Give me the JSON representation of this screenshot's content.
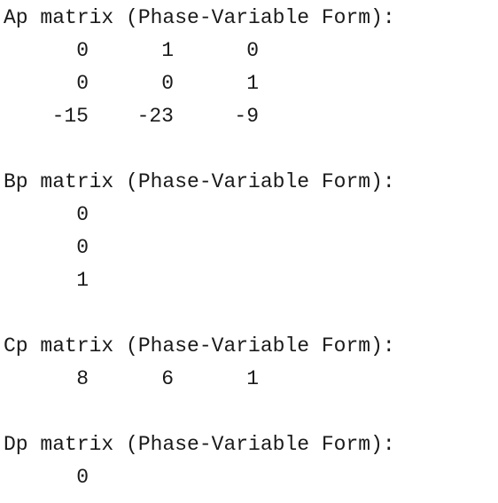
{
  "matrices": {
    "ap": {
      "label": "Ap matrix (Phase-Variable Form):",
      "rows": [
        [
          "0",
          "1",
          "0"
        ],
        [
          "0",
          "0",
          "1"
        ],
        [
          "-15",
          "-23",
          "-9"
        ]
      ]
    },
    "bp": {
      "label": "Bp matrix (Phase-Variable Form):",
      "rows": [
        [
          "0"
        ],
        [
          "0"
        ],
        [
          "1"
        ]
      ]
    },
    "cp": {
      "label": "Cp matrix (Phase-Variable Form):",
      "rows": [
        [
          "8",
          "6",
          "1"
        ]
      ]
    },
    "dp": {
      "label": "Dp matrix (Phase-Variable Form):",
      "rows": [
        [
          "0"
        ]
      ]
    }
  }
}
